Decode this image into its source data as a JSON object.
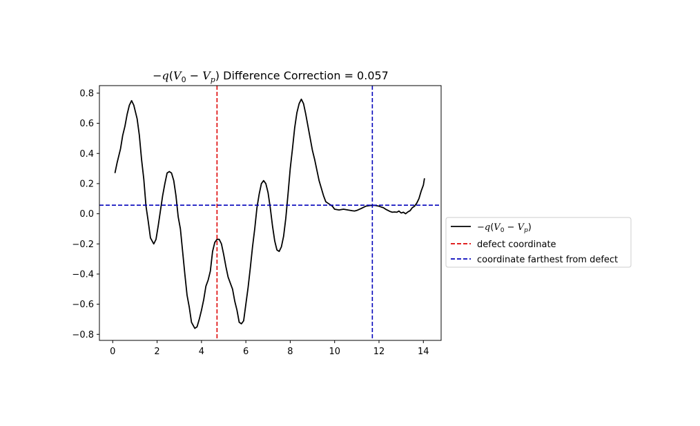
{
  "chart_data": {
    "type": "line",
    "title_prefix": "−q(V",
    "title": "−q(V0 − Vp) Difference Correction = 0.057",
    "title_suffix": " Difference Correction = 0.057",
    "xlim": [
      -0.6,
      14.8
    ],
    "ylim": [
      -0.84,
      0.85
    ],
    "x_ticks": [
      0,
      2,
      4,
      6,
      8,
      10,
      12,
      14
    ],
    "x_tick_labels": [
      "0",
      "2",
      "4",
      "6",
      "8",
      "10",
      "12",
      "14"
    ],
    "y_ticks": [
      0.8,
      0.6,
      0.4,
      0.2,
      0.0,
      -0.2,
      -0.4,
      -0.6,
      -0.8
    ],
    "y_tick_labels": [
      "0.8",
      "0.6",
      "0.4",
      "0.2",
      "0.0",
      "−0.2",
      "−0.4",
      "−0.6",
      "−0.8"
    ],
    "grid": false,
    "legend_position": "right-outside",
    "series": [
      {
        "name": "−q(V0 − Vp)",
        "color": "#000000",
        "style": "solid",
        "points": [
          [
            0.1,
            0.27
          ],
          [
            0.2,
            0.34
          ],
          [
            0.35,
            0.43
          ],
          [
            0.45,
            0.52
          ],
          [
            0.55,
            0.58
          ],
          [
            0.65,
            0.66
          ],
          [
            0.75,
            0.72
          ],
          [
            0.85,
            0.75
          ],
          [
            0.95,
            0.72
          ],
          [
            1.1,
            0.63
          ],
          [
            1.2,
            0.52
          ],
          [
            1.3,
            0.36
          ],
          [
            1.4,
            0.23
          ],
          [
            1.5,
            0.05
          ],
          [
            1.6,
            -0.05
          ],
          [
            1.7,
            -0.16
          ],
          [
            1.85,
            -0.2
          ],
          [
            1.95,
            -0.17
          ],
          [
            2.05,
            -0.08
          ],
          [
            2.15,
            0.02
          ],
          [
            2.25,
            0.12
          ],
          [
            2.35,
            0.2
          ],
          [
            2.45,
            0.27
          ],
          [
            2.55,
            0.28
          ],
          [
            2.65,
            0.27
          ],
          [
            2.75,
            0.22
          ],
          [
            2.85,
            0.12
          ],
          [
            2.95,
            -0.02
          ],
          [
            3.05,
            -0.1
          ],
          [
            3.15,
            -0.25
          ],
          [
            3.25,
            -0.4
          ],
          [
            3.35,
            -0.54
          ],
          [
            3.45,
            -0.62
          ],
          [
            3.55,
            -0.72
          ],
          [
            3.7,
            -0.76
          ],
          [
            3.8,
            -0.75
          ],
          [
            3.9,
            -0.7
          ],
          [
            4.0,
            -0.64
          ],
          [
            4.1,
            -0.57
          ],
          [
            4.2,
            -0.48
          ],
          [
            4.3,
            -0.44
          ],
          [
            4.4,
            -0.38
          ],
          [
            4.5,
            -0.25
          ],
          [
            4.6,
            -0.19
          ],
          [
            4.7,
            -0.17
          ],
          [
            4.8,
            -0.17
          ],
          [
            4.9,
            -0.2
          ],
          [
            5.0,
            -0.27
          ],
          [
            5.1,
            -0.35
          ],
          [
            5.2,
            -0.42
          ],
          [
            5.3,
            -0.46
          ],
          [
            5.4,
            -0.5
          ],
          [
            5.5,
            -0.58
          ],
          [
            5.6,
            -0.64
          ],
          [
            5.7,
            -0.72
          ],
          [
            5.8,
            -0.73
          ],
          [
            5.9,
            -0.71
          ],
          [
            6.0,
            -0.6
          ],
          [
            6.1,
            -0.49
          ],
          [
            6.2,
            -0.36
          ],
          [
            6.3,
            -0.22
          ],
          [
            6.4,
            -0.1
          ],
          [
            6.5,
            0.04
          ],
          [
            6.6,
            0.13
          ],
          [
            6.7,
            0.2
          ],
          [
            6.8,
            0.22
          ],
          [
            6.9,
            0.2
          ],
          [
            7.0,
            0.14
          ],
          [
            7.1,
            0.04
          ],
          [
            7.2,
            -0.08
          ],
          [
            7.3,
            -0.18
          ],
          [
            7.4,
            -0.24
          ],
          [
            7.5,
            -0.25
          ],
          [
            7.6,
            -0.22
          ],
          [
            7.7,
            -0.15
          ],
          [
            7.8,
            -0.03
          ],
          [
            7.9,
            0.13
          ],
          [
            8.0,
            0.3
          ],
          [
            8.1,
            0.43
          ],
          [
            8.2,
            0.57
          ],
          [
            8.3,
            0.67
          ],
          [
            8.4,
            0.73
          ],
          [
            8.5,
            0.76
          ],
          [
            8.6,
            0.73
          ],
          [
            8.7,
            0.66
          ],
          [
            8.8,
            0.58
          ],
          [
            8.9,
            0.5
          ],
          [
            9.0,
            0.42
          ],
          [
            9.1,
            0.36
          ],
          [
            9.2,
            0.29
          ],
          [
            9.3,
            0.22
          ],
          [
            9.4,
            0.17
          ],
          [
            9.5,
            0.12
          ],
          [
            9.6,
            0.08
          ],
          [
            9.7,
            0.07
          ],
          [
            9.8,
            0.06
          ],
          [
            9.9,
            0.05
          ],
          [
            10.0,
            0.03
          ],
          [
            10.2,
            0.025
          ],
          [
            10.4,
            0.03
          ],
          [
            10.6,
            0.025
          ],
          [
            10.8,
            0.02
          ],
          [
            10.9,
            0.018
          ],
          [
            11.0,
            0.022
          ],
          [
            11.2,
            0.035
          ],
          [
            11.4,
            0.05
          ],
          [
            11.6,
            0.055
          ],
          [
            11.8,
            0.056
          ],
          [
            12.0,
            0.05
          ],
          [
            12.2,
            0.04
          ],
          [
            12.3,
            0.03
          ],
          [
            12.5,
            0.015
          ],
          [
            12.6,
            0.01
          ],
          [
            12.7,
            0.012
          ],
          [
            12.8,
            0.01
          ],
          [
            12.9,
            0.018
          ],
          [
            13.0,
            0.005
          ],
          [
            13.1,
            0.01
          ],
          [
            13.2,
            0.0
          ],
          [
            13.3,
            0.012
          ],
          [
            13.4,
            0.02
          ],
          [
            13.5,
            0.04
          ],
          [
            13.6,
            0.05
          ],
          [
            13.7,
            0.07
          ],
          [
            13.8,
            0.1
          ],
          [
            13.9,
            0.15
          ],
          [
            14.0,
            0.19
          ],
          [
            14.05,
            0.235
          ]
        ]
      }
    ],
    "reference_lines": [
      {
        "name": "defect coordinate",
        "orientation": "vertical",
        "value": 4.7,
        "color": "#dd0000",
        "style": "dashed"
      },
      {
        "name": "coordinate farthest from defect",
        "orientation": "vertical",
        "value": 11.7,
        "color": "#0000bb",
        "style": "dashed"
      },
      {
        "name": "",
        "orientation": "horizontal",
        "value": 0.057,
        "color": "#0000bb",
        "style": "dashed"
      }
    ],
    "legend": [
      {
        "label_prefix": "−q(V",
        "label": "−q(V0 − Vp)",
        "color": "#000000",
        "style": "solid"
      },
      {
        "label": "defect coordinate",
        "color": "#dd0000",
        "style": "dashed"
      },
      {
        "label": "coordinate farthest from defect",
        "color": "#0000bb",
        "style": "dashed"
      }
    ]
  }
}
